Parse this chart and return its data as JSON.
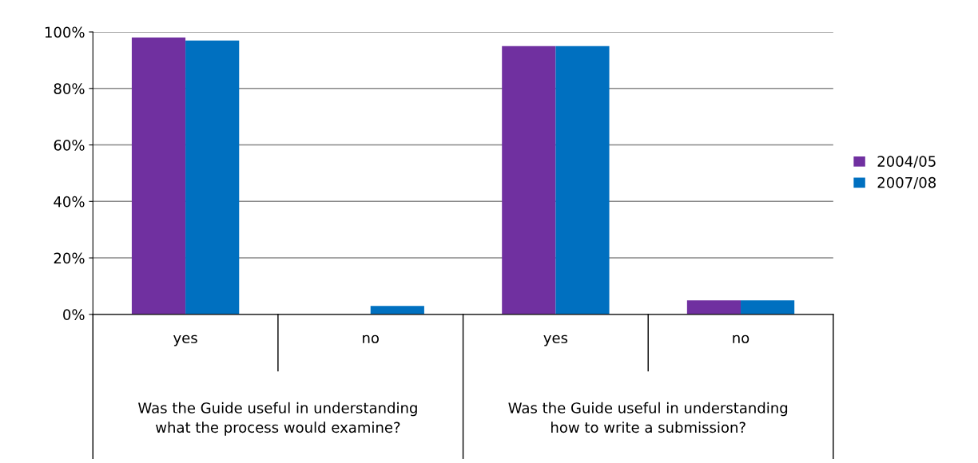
{
  "chart_data": {
    "type": "bar",
    "categories": [
      "yes",
      "no",
      "yes",
      "no"
    ],
    "series": [
      {
        "name": "2004/05",
        "color": "#7030a0",
        "values": [
          98,
          0,
          95,
          5
        ]
      },
      {
        "name": "2007/08",
        "color": "#0070c0",
        "values": [
          97,
          3,
          95,
          5
        ]
      }
    ],
    "ylim": [
      0,
      100
    ],
    "yticks": [
      {
        "value": 0,
        "label": "0%"
      },
      {
        "value": 20,
        "label": "20%"
      },
      {
        "value": 40,
        "label": "40%"
      },
      {
        "value": 60,
        "label": "60%"
      },
      {
        "value": 80,
        "label": "80%"
      },
      {
        "value": 100,
        "label": "100%"
      }
    ],
    "grid": "y",
    "legend": "right",
    "annotations": [
      "Was the Guide useful in understanding what the process would examine?",
      "Was the Guide useful in understanding how to write a submission?"
    ]
  }
}
